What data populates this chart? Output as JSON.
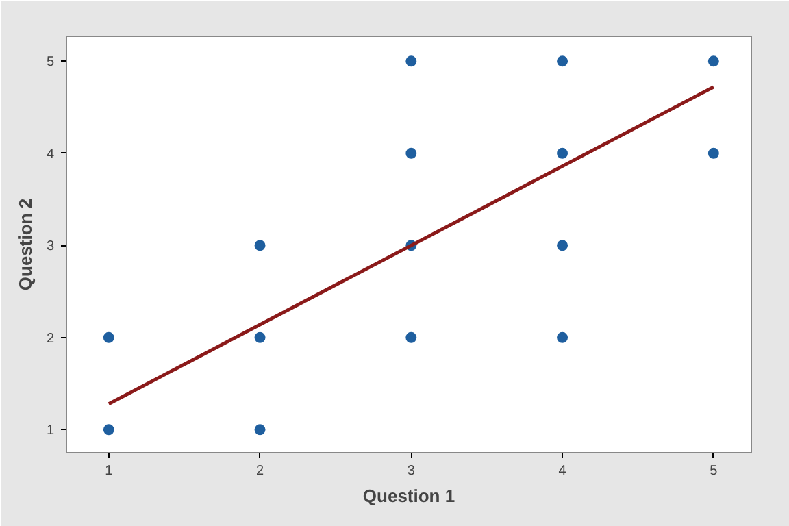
{
  "chart_data": {
    "type": "scatter",
    "xlabel": "Question 1",
    "ylabel": "Question 2",
    "xlim": [
      0.72,
      5.25
    ],
    "ylim": [
      0.75,
      5.27
    ],
    "xticks": [
      1,
      2,
      3,
      4,
      5
    ],
    "yticks": [
      1,
      2,
      3,
      4,
      5
    ],
    "grid": false,
    "series": [
      {
        "marker": "circle",
        "color": "#1f5f9f",
        "x": [
          1,
          1,
          2,
          2,
          2,
          3,
          3,
          3,
          3,
          4,
          4,
          4,
          4,
          5,
          5
        ],
        "values": [
          1,
          2,
          1,
          2,
          3,
          2,
          3,
          4,
          5,
          2,
          3,
          4,
          5,
          4,
          5
        ]
      },
      {
        "type": "line",
        "marker": "none",
        "color": "#8b1a1a",
        "x": [
          1,
          5
        ],
        "values": [
          1.28,
          4.72
        ]
      }
    ]
  }
}
